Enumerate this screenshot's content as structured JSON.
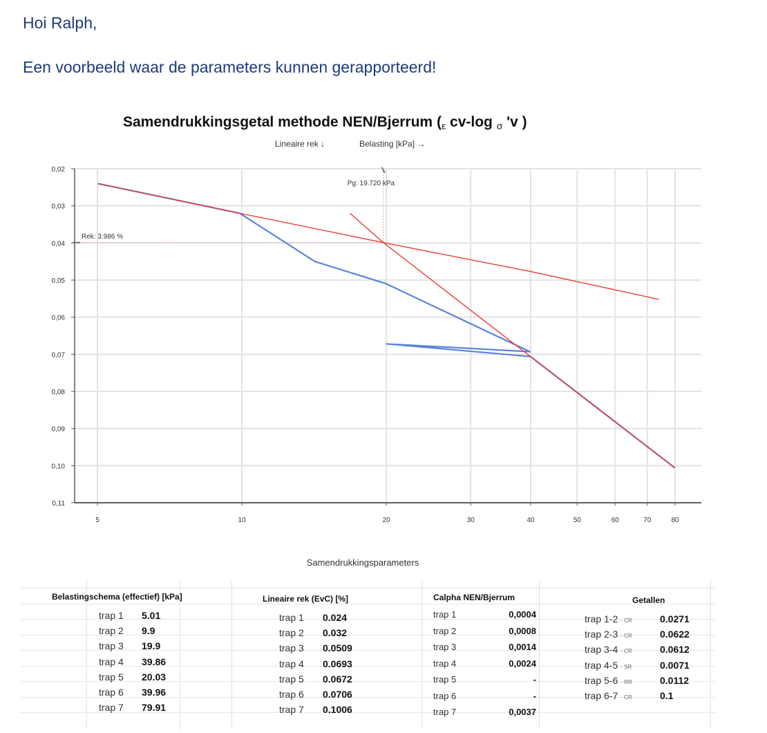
{
  "email": {
    "greeting": "Hoi Ralph,",
    "intro": "Een voorbeeld waar de parameters kunnen gerapporteerd!"
  },
  "chart_data": {
    "type": "line",
    "title_parts": [
      "Samendrukkingsgetal methode NEN/Bjerrum (",
      "ε",
      " cv-log ",
      "σ",
      " 'v )"
    ],
    "subtitle_left": "Lineaire rek ↓",
    "subtitle_right": "Belasting [kPa] →",
    "xscale": "log",
    "xlim": [
      4.5,
      85
    ],
    "ylim": [
      0.02,
      0.11
    ],
    "y_inverted": true,
    "x_ticks": [
      "5",
      "10",
      "20",
      "30",
      "40",
      "50",
      "60",
      "70",
      "80"
    ],
    "x_tick_values": [
      5,
      10,
      20,
      30,
      40,
      50,
      60,
      70,
      80
    ],
    "y_ticks": [
      "0,02",
      "0,03",
      "0,04",
      "0,05",
      "0,06",
      "0,07",
      "0,08",
      "0,09",
      "0,10",
      "0,11"
    ],
    "y_tick_values": [
      0.02,
      0.03,
      0.04,
      0.05,
      0.06,
      0.07,
      0.08,
      0.09,
      0.1,
      0.11
    ],
    "grid": true,
    "series": [
      {
        "color": "#5b84d8",
        "x": [
          5.01,
          9.9,
          14.2,
          19.9,
          39.86,
          20.03,
          39.96,
          79.91
        ],
        "y": [
          0.024,
          0.032,
          0.045,
          0.0509,
          0.0693,
          0.0672,
          0.0706,
          0.1006
        ]
      },
      {
        "color": "#e8403a",
        "x": [
          5.01,
          9.9,
          19.72,
          40,
          74
        ],
        "y": [
          0.024,
          0.032,
          0.0399,
          0.0477,
          0.0552
        ]
      },
      {
        "color": "#e8403a",
        "x": [
          16.8,
          19.72,
          39.96,
          79.91
        ],
        "y": [
          0.032,
          0.0399,
          0.0706,
          0.1006
        ]
      }
    ],
    "annotations": {
      "pg_label": "Pg: 19.720 kPa",
      "pg_x": 19.72,
      "rek_label": "Rek: 3.986 %",
      "rek_y": 0.0399
    }
  },
  "params": {
    "title": "Samendrukkingsparameters",
    "belasting": {
      "header": "Belastingschema (effectief) [kPa]",
      "rows": [
        {
          "label": "trap 1",
          "value": "5.01"
        },
        {
          "label": "trap 2",
          "value": "9.9"
        },
        {
          "label": "trap 3",
          "value": "19.9"
        },
        {
          "label": "trap 4",
          "value": "39.86"
        },
        {
          "label": "trap 5",
          "value": "20.03"
        },
        {
          "label": "trap 6",
          "value": "39.96"
        },
        {
          "label": "trap 7",
          "value": "79.91"
        }
      ]
    },
    "rek": {
      "header": "Lineaire rek (EvC) [%]",
      "rows": [
        {
          "label": "trap 1",
          "value": "0.024"
        },
        {
          "label": "trap 2",
          "value": "0.032"
        },
        {
          "label": "trap 3",
          "value": "0.0509"
        },
        {
          "label": "trap 4",
          "value": "0.0693"
        },
        {
          "label": "trap 5",
          "value": "0.0672"
        },
        {
          "label": "trap 6",
          "value": "0.0706"
        },
        {
          "label": "trap 7",
          "value": "0.1006"
        }
      ]
    },
    "calpha": {
      "header": "Calpha NEN/Bjerrum",
      "rows": [
        {
          "label": "trap 1",
          "value": "0,0004"
        },
        {
          "label": "trap 2",
          "value": "0,0008"
        },
        {
          "label": "trap 3",
          "value": "0,0014"
        },
        {
          "label": "trap 4",
          "value": "0,0024"
        },
        {
          "label": "trap 5",
          "value": "-"
        },
        {
          "label": "trap 6",
          "value": "-"
        },
        {
          "label": "trap 7",
          "value": "0,0037"
        }
      ]
    },
    "getallen": {
      "header": "Getallen",
      "rows": [
        {
          "label": "trap 1-2",
          "tag": "CR",
          "value": "0.0271"
        },
        {
          "label": "trap 2-3",
          "tag": "CR",
          "value": "0.0622"
        },
        {
          "label": "trap 3-4",
          "tag": "CR",
          "value": "0.0612"
        },
        {
          "label": "trap 4-5",
          "tag": "SR",
          "value": "0.0071"
        },
        {
          "label": "trap 5-6",
          "tag": "RR",
          "value": "0.0112"
        },
        {
          "label": "trap 6-7",
          "tag": "CR",
          "value": "0.1"
        }
      ]
    }
  }
}
